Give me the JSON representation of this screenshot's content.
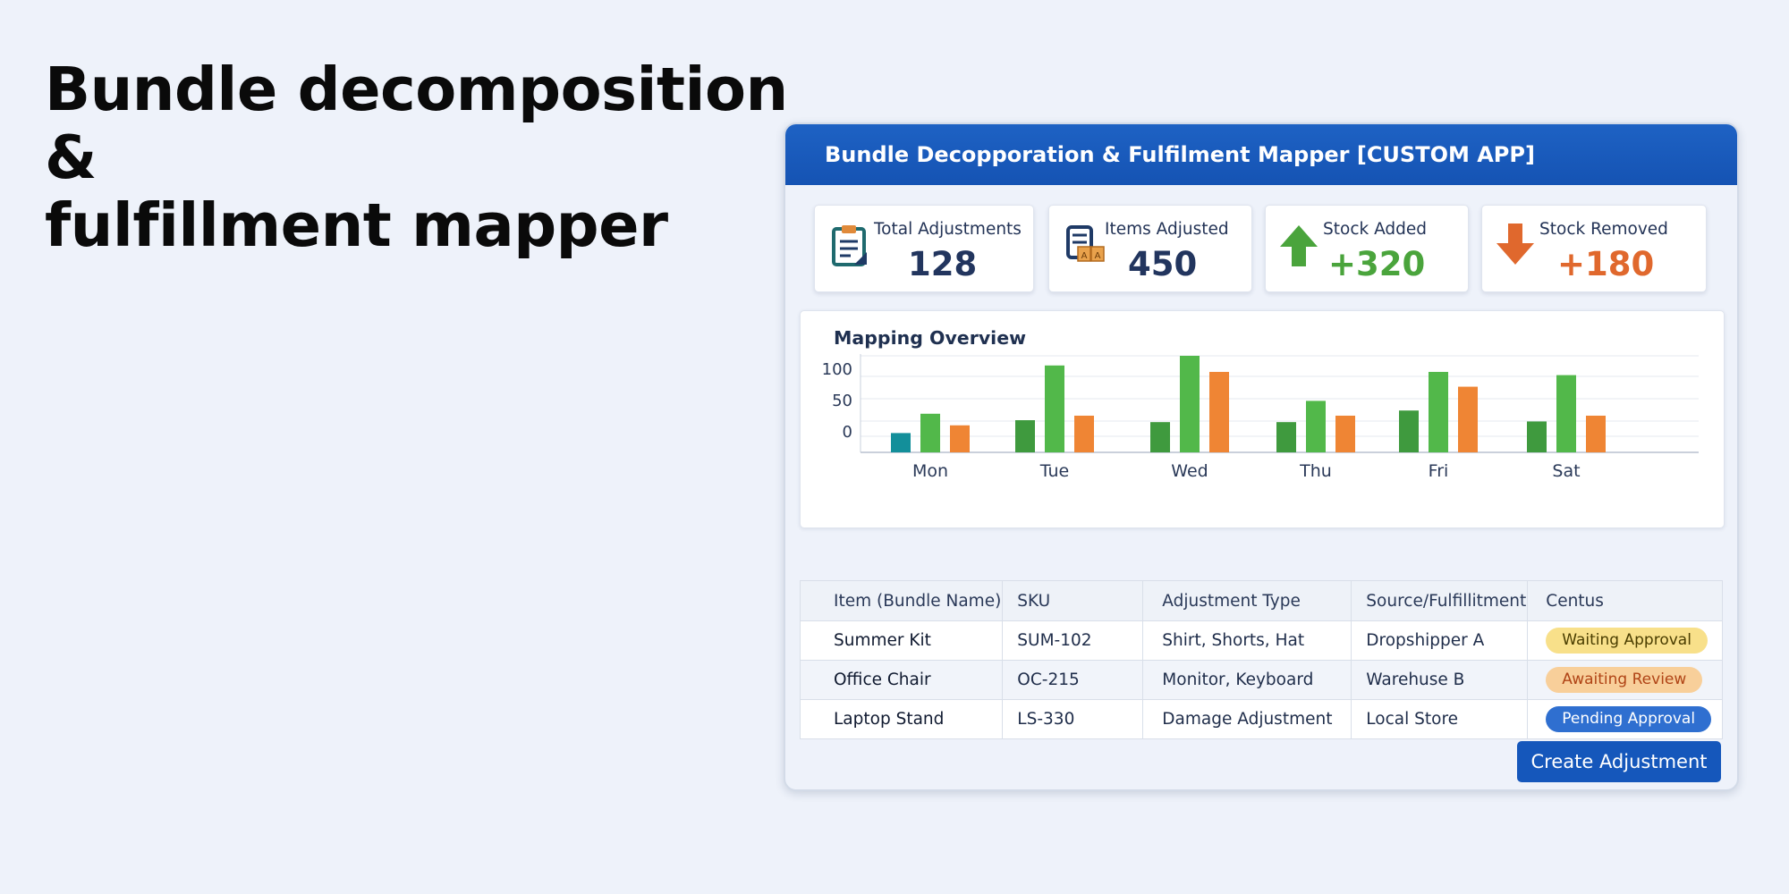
{
  "headline": {
    "line1": "Bundle decomposition &",
    "line2": "fulfillment mapper"
  },
  "app": {
    "title": "Bundle Decopporation & Fulfilment Mapper [CUSTOM APP]",
    "accent_color": "#1557bb"
  },
  "stats": [
    {
      "label": "Total Adjustments",
      "value": "128",
      "icon": "clipboard-icon",
      "color": "#22355e"
    },
    {
      "label": "Items Adjusted",
      "value": "450",
      "icon": "boxes-icon",
      "color": "#22355e"
    },
    {
      "label": "Stock Added",
      "value": "+320",
      "icon": "arrow-up-icon",
      "color": "#4aa43c"
    },
    {
      "label": "Stock Removed",
      "value": "+180",
      "icon": "arrow-down-icon",
      "color": "#e0682d"
    }
  ],
  "chart_data": {
    "type": "bar",
    "title": "Mapping Overview",
    "categories": [
      "Mon",
      "Tue",
      "Wed",
      "Thu",
      "Fri",
      "Sat"
    ],
    "y_ticks": [
      "100",
      "50",
      "0"
    ],
    "ylim": [
      -25,
      125
    ],
    "grid": true,
    "series": [
      {
        "values": [
          5,
          25,
          22,
          22,
          40,
          23
        ],
        "colors": [
          "#138f9a",
          "#3f9a3e",
          "#3f9a3e",
          "#3f9a3e",
          "#3f9a3e",
          "#3f9a3e"
        ]
      },
      {
        "values": [
          35,
          110,
          125,
          55,
          100,
          95
        ],
        "color": "#52b84a"
      },
      {
        "values": [
          17,
          32,
          100,
          32,
          77,
          32
        ],
        "color": "#ef8534"
      }
    ]
  },
  "table": {
    "headers": [
      "Item (Bundle Name)",
      "SKU",
      "Adjustment Type",
      "Source/Fulfillitment",
      "Centus"
    ],
    "rows": [
      {
        "item": "Summer Kit",
        "sku": "SUM-102",
        "type": "Shirt, Shorts, Hat",
        "source": "Dropshipper A",
        "status": "Waiting Approval",
        "status_color": "#f8e08a"
      },
      {
        "item": "Office Chair",
        "sku": "OC-215",
        "type": "Monitor, Keyboard",
        "source": "Warehuse B",
        "status": "Awaiting Review",
        "status_color": "#f8cf9a"
      },
      {
        "item": "Laptop Stand",
        "sku": "LS-330",
        "type": "Damage Adjustment",
        "source": "Local Store",
        "status": "Pending Approval",
        "status_color": "#2f6fd0"
      }
    ]
  },
  "actions": {
    "create_label": "Create Adjustment"
  }
}
